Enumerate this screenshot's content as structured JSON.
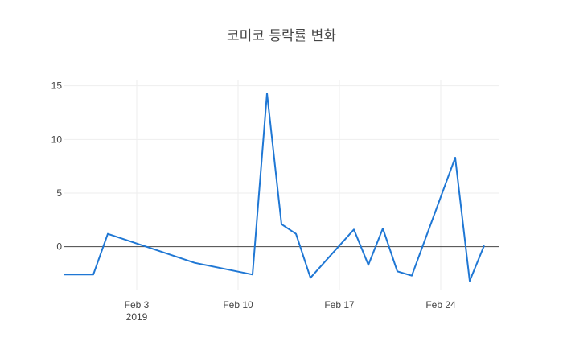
{
  "chart_data": {
    "type": "line",
    "title": "코미코 등락률 변화",
    "xlabel": "",
    "ylabel": "",
    "xaxis": {
      "type": "date",
      "range": [
        "2019-01-29",
        "2019-02-28"
      ],
      "ticks": [
        {
          "date": "2019-02-03",
          "label": "Feb 3",
          "sublabel": "2019"
        },
        {
          "date": "2019-02-10",
          "label": "Feb 10",
          "sublabel": ""
        },
        {
          "date": "2019-02-17",
          "label": "Feb 17",
          "sublabel": ""
        },
        {
          "date": "2019-02-24",
          "label": "Feb 24",
          "sublabel": ""
        }
      ]
    },
    "yaxis": {
      "range": [
        -4.0,
        15.5
      ],
      "ticks": [
        0,
        5,
        10,
        15
      ],
      "zeroline": true
    },
    "grid": true,
    "color": "#1f77d4",
    "series": [
      {
        "name": "",
        "x": [
          "2019-01-29",
          "2019-01-31",
          "2019-02-01",
          "2019-02-07",
          "2019-02-11",
          "2019-02-12",
          "2019-02-13",
          "2019-02-14",
          "2019-02-15",
          "2019-02-18",
          "2019-02-19",
          "2019-02-20",
          "2019-02-21",
          "2019-02-22",
          "2019-02-25",
          "2019-02-26",
          "2019-02-27"
        ],
        "y": [
          -2.6,
          -2.6,
          1.2,
          -1.5,
          -2.6,
          14.3,
          2.1,
          1.2,
          -2.9,
          1.6,
          -1.7,
          1.7,
          -2.3,
          -2.7,
          8.3,
          -3.2,
          0.1
        ]
      }
    ]
  }
}
